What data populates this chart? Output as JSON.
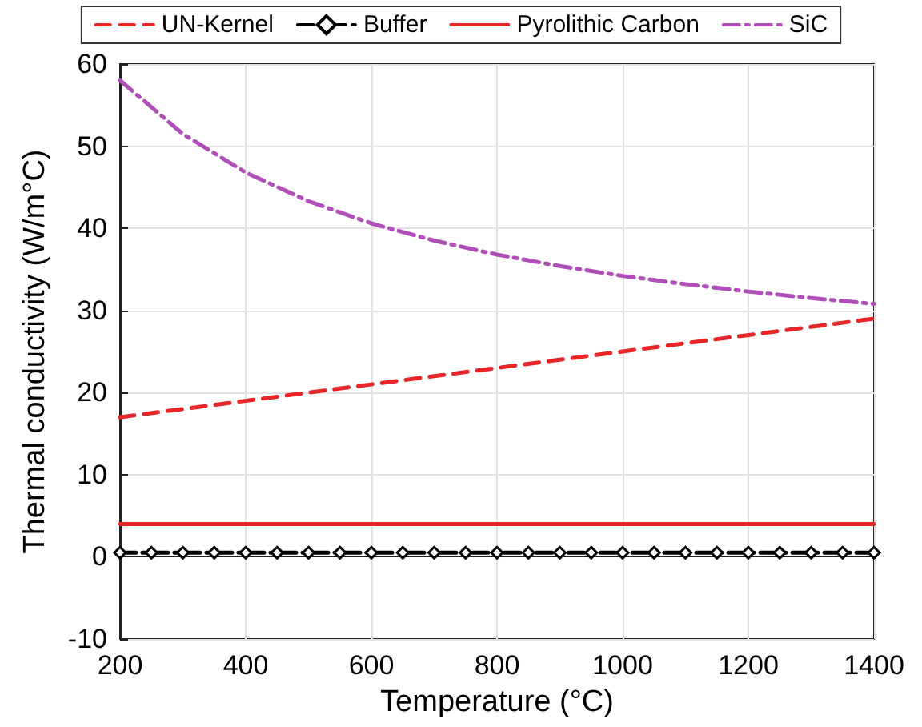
{
  "chart_data": {
    "type": "line",
    "xlabel": "Temperature (°C)",
    "ylabel": "Thermal conductivity (W/m°C)",
    "xlim": [
      200,
      1400
    ],
    "xticks": [
      200,
      400,
      600,
      800,
      1000,
      1200,
      1400
    ],
    "ylim": [
      -10,
      60
    ],
    "yticks": [
      -10,
      0,
      10,
      20,
      30,
      40,
      50,
      60
    ],
    "grid": true,
    "legend": "top",
    "series": [
      {
        "name": "UN-Kernel",
        "color": "#e8262a",
        "line_style": "dashed",
        "marker": "none",
        "x": [
          200,
          1400
        ],
        "values": [
          17,
          29
        ]
      },
      {
        "name": "Buffer",
        "color": "#000000",
        "line_style": "dashdot",
        "marker": "diamond",
        "x": [
          200,
          250,
          300,
          350,
          400,
          450,
          500,
          550,
          600,
          650,
          700,
          750,
          800,
          850,
          900,
          950,
          1000,
          1050,
          1100,
          1150,
          1200,
          1250,
          1300,
          1350,
          1400
        ],
        "values": [
          0.5,
          0.5,
          0.5,
          0.5,
          0.5,
          0.5,
          0.5,
          0.5,
          0.5,
          0.5,
          0.5,
          0.5,
          0.5,
          0.5,
          0.5,
          0.5,
          0.5,
          0.5,
          0.5,
          0.5,
          0.5,
          0.5,
          0.5,
          0.5,
          0.5
        ]
      },
      {
        "name": "Pyrolithic Carbon",
        "color": "#e8262a",
        "line_style": "solid",
        "marker": "none",
        "x": [
          200,
          1400
        ],
        "values": [
          4,
          4
        ]
      },
      {
        "name": "SiC",
        "color": "#b04fb8",
        "line_style": "dashdot",
        "marker": "none",
        "x": [
          200,
          300,
          400,
          500,
          600,
          700,
          800,
          900,
          1000,
          1100,
          1200,
          1300,
          1400
        ],
        "values": [
          58,
          51.5,
          46.8,
          43.3,
          40.6,
          38.5,
          36.8,
          35.4,
          34.2,
          33.2,
          32.3,
          31.5,
          30.8
        ]
      }
    ]
  }
}
